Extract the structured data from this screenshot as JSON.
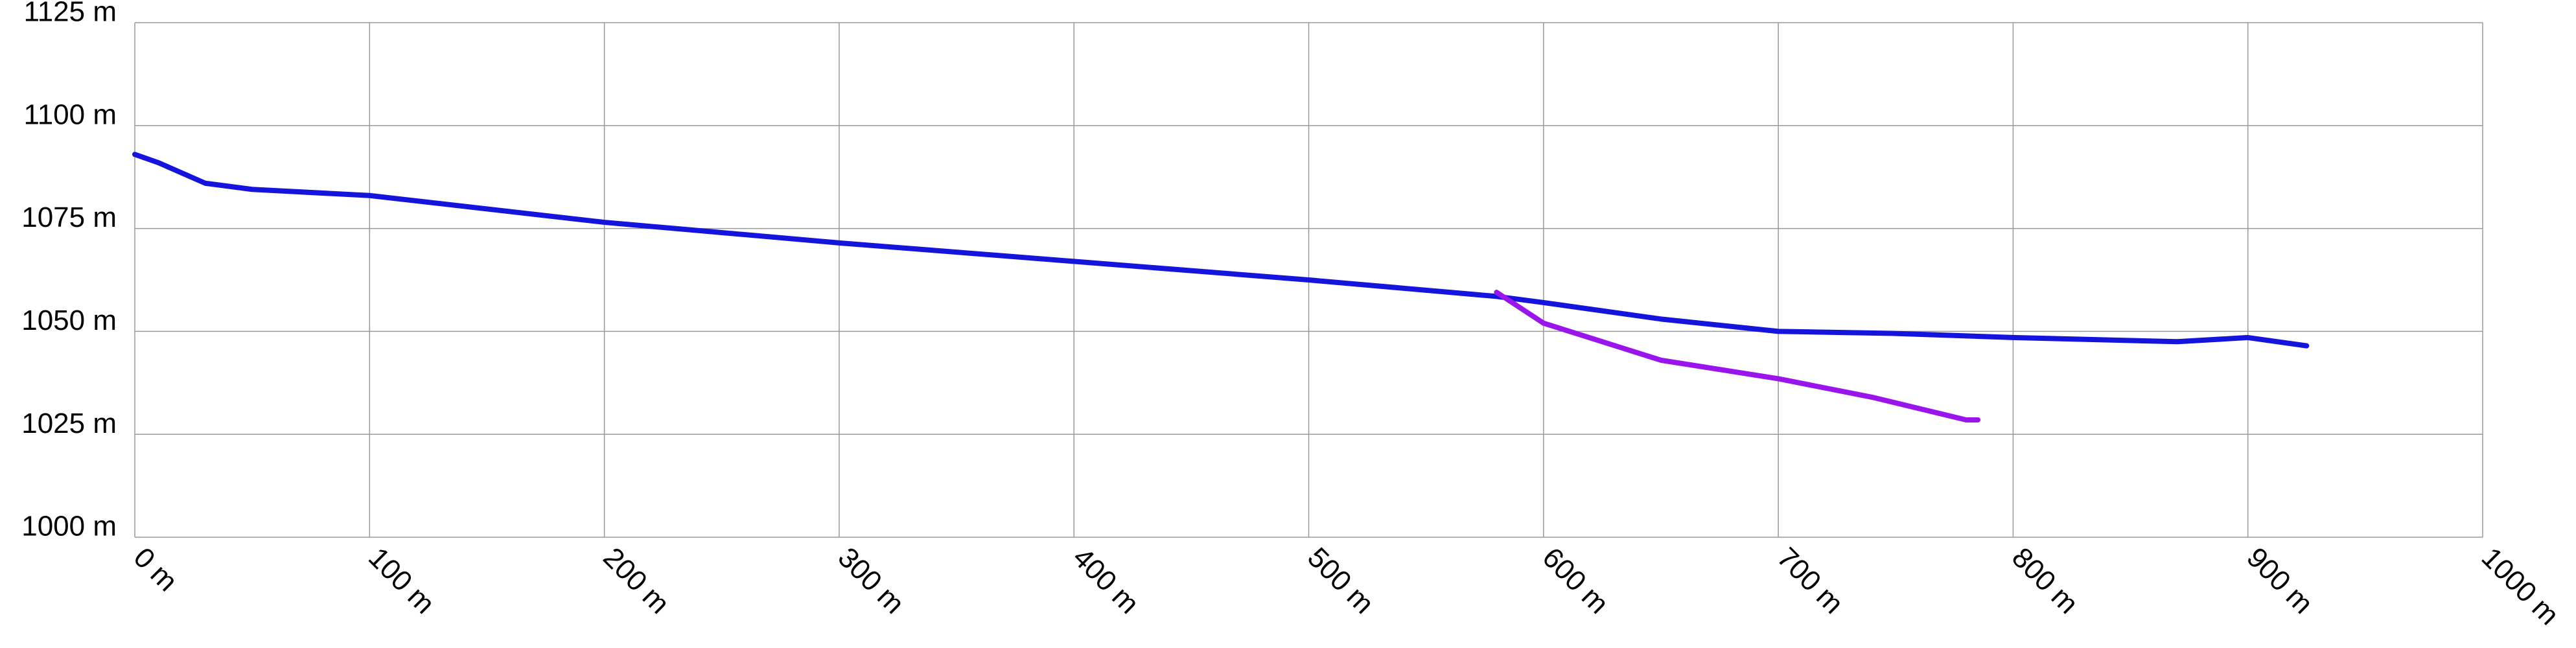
{
  "chart_data": {
    "type": "line",
    "xlim": [
      0,
      1000
    ],
    "xticks": [
      {
        "value": 0,
        "label": "0 m"
      },
      {
        "value": 100,
        "label": "100 m"
      },
      {
        "value": 200,
        "label": "200 m"
      },
      {
        "value": 300,
        "label": "300 m"
      },
      {
        "value": 400,
        "label": "400 m"
      },
      {
        "value": 500,
        "label": "500 m"
      },
      {
        "value": 600,
        "label": "600 m"
      },
      {
        "value": 700,
        "label": "700 m"
      },
      {
        "value": 800,
        "label": "800 m"
      },
      {
        "value": 900,
        "label": "900 m"
      },
      {
        "value": 1000,
        "label": "1000 m"
      }
    ],
    "ylim": [
      1000,
      1125
    ],
    "yticks": [
      {
        "value": 1000,
        "label": "1000 m"
      },
      {
        "value": 1025,
        "label": "1025 m"
      },
      {
        "value": 1050,
        "label": "1050 m"
      },
      {
        "value": 1075,
        "label": "1075 m"
      },
      {
        "value": 1100,
        "label": "1100 m"
      },
      {
        "value": 1125,
        "label": "1125 m"
      }
    ],
    "grid": true,
    "series": [
      {
        "color": "#1414dc",
        "x": [
          0,
          10,
          30,
          50,
          100,
          200,
          300,
          400,
          500,
          580,
          600,
          650,
          700,
          750,
          800,
          870,
          900,
          925
        ],
        "values": [
          1093,
          1091,
          1086,
          1084.5,
          1083,
          1076.5,
          1071.5,
          1067,
          1062.5,
          1058.5,
          1057,
          1053,
          1050,
          1049.5,
          1048.5,
          1047.5,
          1048.5,
          1046.5
        ]
      },
      {
        "color": "#9a14ec",
        "x": [
          580,
          600,
          650,
          700,
          740,
          780,
          785
        ],
        "values": [
          1059.5,
          1052,
          1043,
          1038.5,
          1034,
          1028.5,
          1028.5
        ]
      }
    ]
  }
}
